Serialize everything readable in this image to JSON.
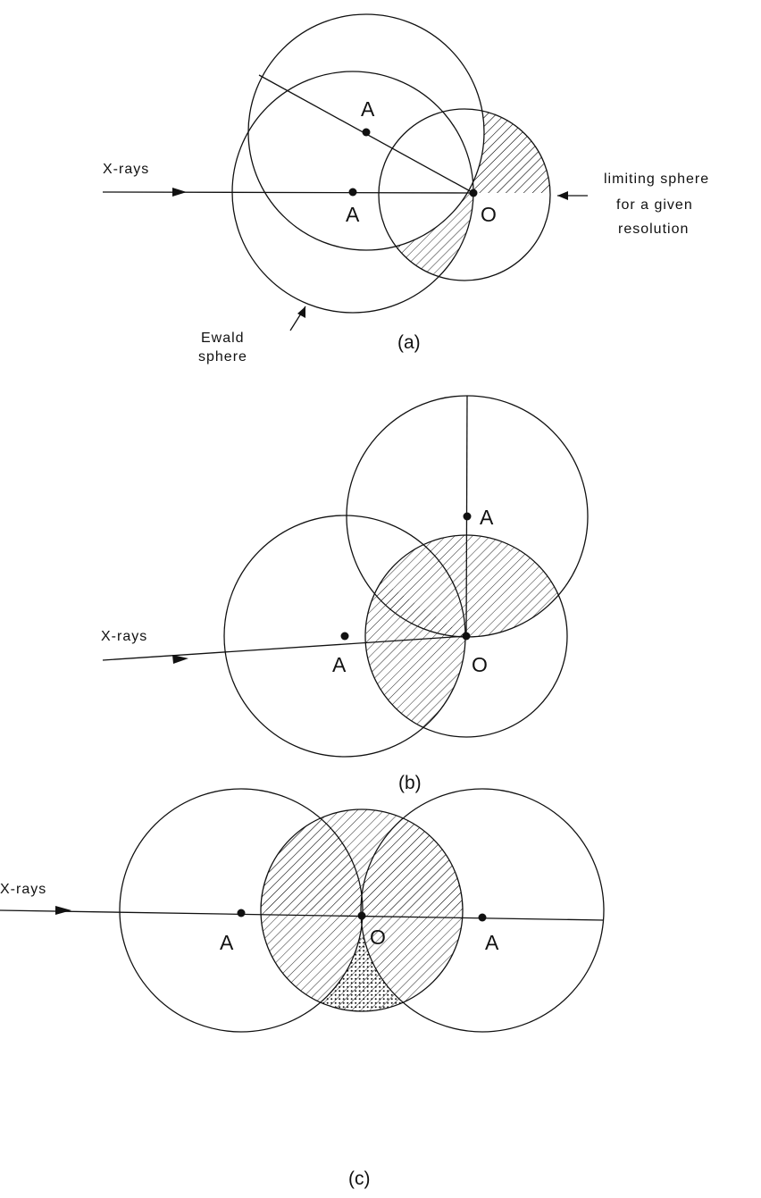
{
  "panels": [
    {
      "caption": "(a)",
      "beam_label": "X-rays",
      "center_labels": [
        "A",
        "A"
      ],
      "origin_label": "O",
      "annotations": {
        "limiting_sphere": [
          "limiting sphere",
          "for a given",
          "resolution"
        ],
        "ewald_sphere": [
          "Ewald",
          "sphere"
        ]
      }
    },
    {
      "caption": "(b)",
      "beam_label": "X-rays",
      "center_labels": [
        "A",
        "A"
      ],
      "origin_label": "O"
    },
    {
      "caption": "(c)",
      "beam_label": "X-rays",
      "center_labels": [
        "A",
        "A"
      ],
      "origin_label": "O"
    }
  ],
  "colors": {
    "ink": "#111111",
    "paper": "#ffffff"
  }
}
